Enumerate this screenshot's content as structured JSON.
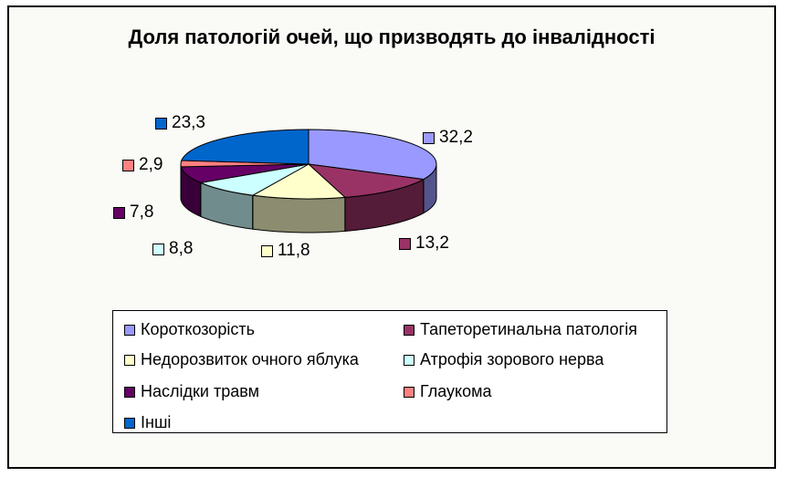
{
  "chart_data": {
    "type": "pie",
    "title": "Доля патологій очей, що призводять до інвалідності",
    "categories": [
      "Короткозорість",
      "Тапеторетинальна патологія",
      "Недорозвиток очного яблука",
      "Атрофія зорового нерва",
      "Наслідки травм",
      "Глаукома",
      "Інші"
    ],
    "values": [
      32.2,
      13.2,
      11.8,
      8.8,
      7.8,
      2.9,
      23.3
    ],
    "value_labels": [
      "32,2",
      "13,2",
      "11,8",
      "8,8",
      "7,8",
      "2,9",
      "23,3"
    ],
    "colors": [
      "#9999ff",
      "#993366",
      "#ffffcc",
      "#ccffff",
      "#660066",
      "#ff8080",
      "#0066cc"
    ],
    "style": "3d-pie",
    "legend_position": "bottom"
  }
}
